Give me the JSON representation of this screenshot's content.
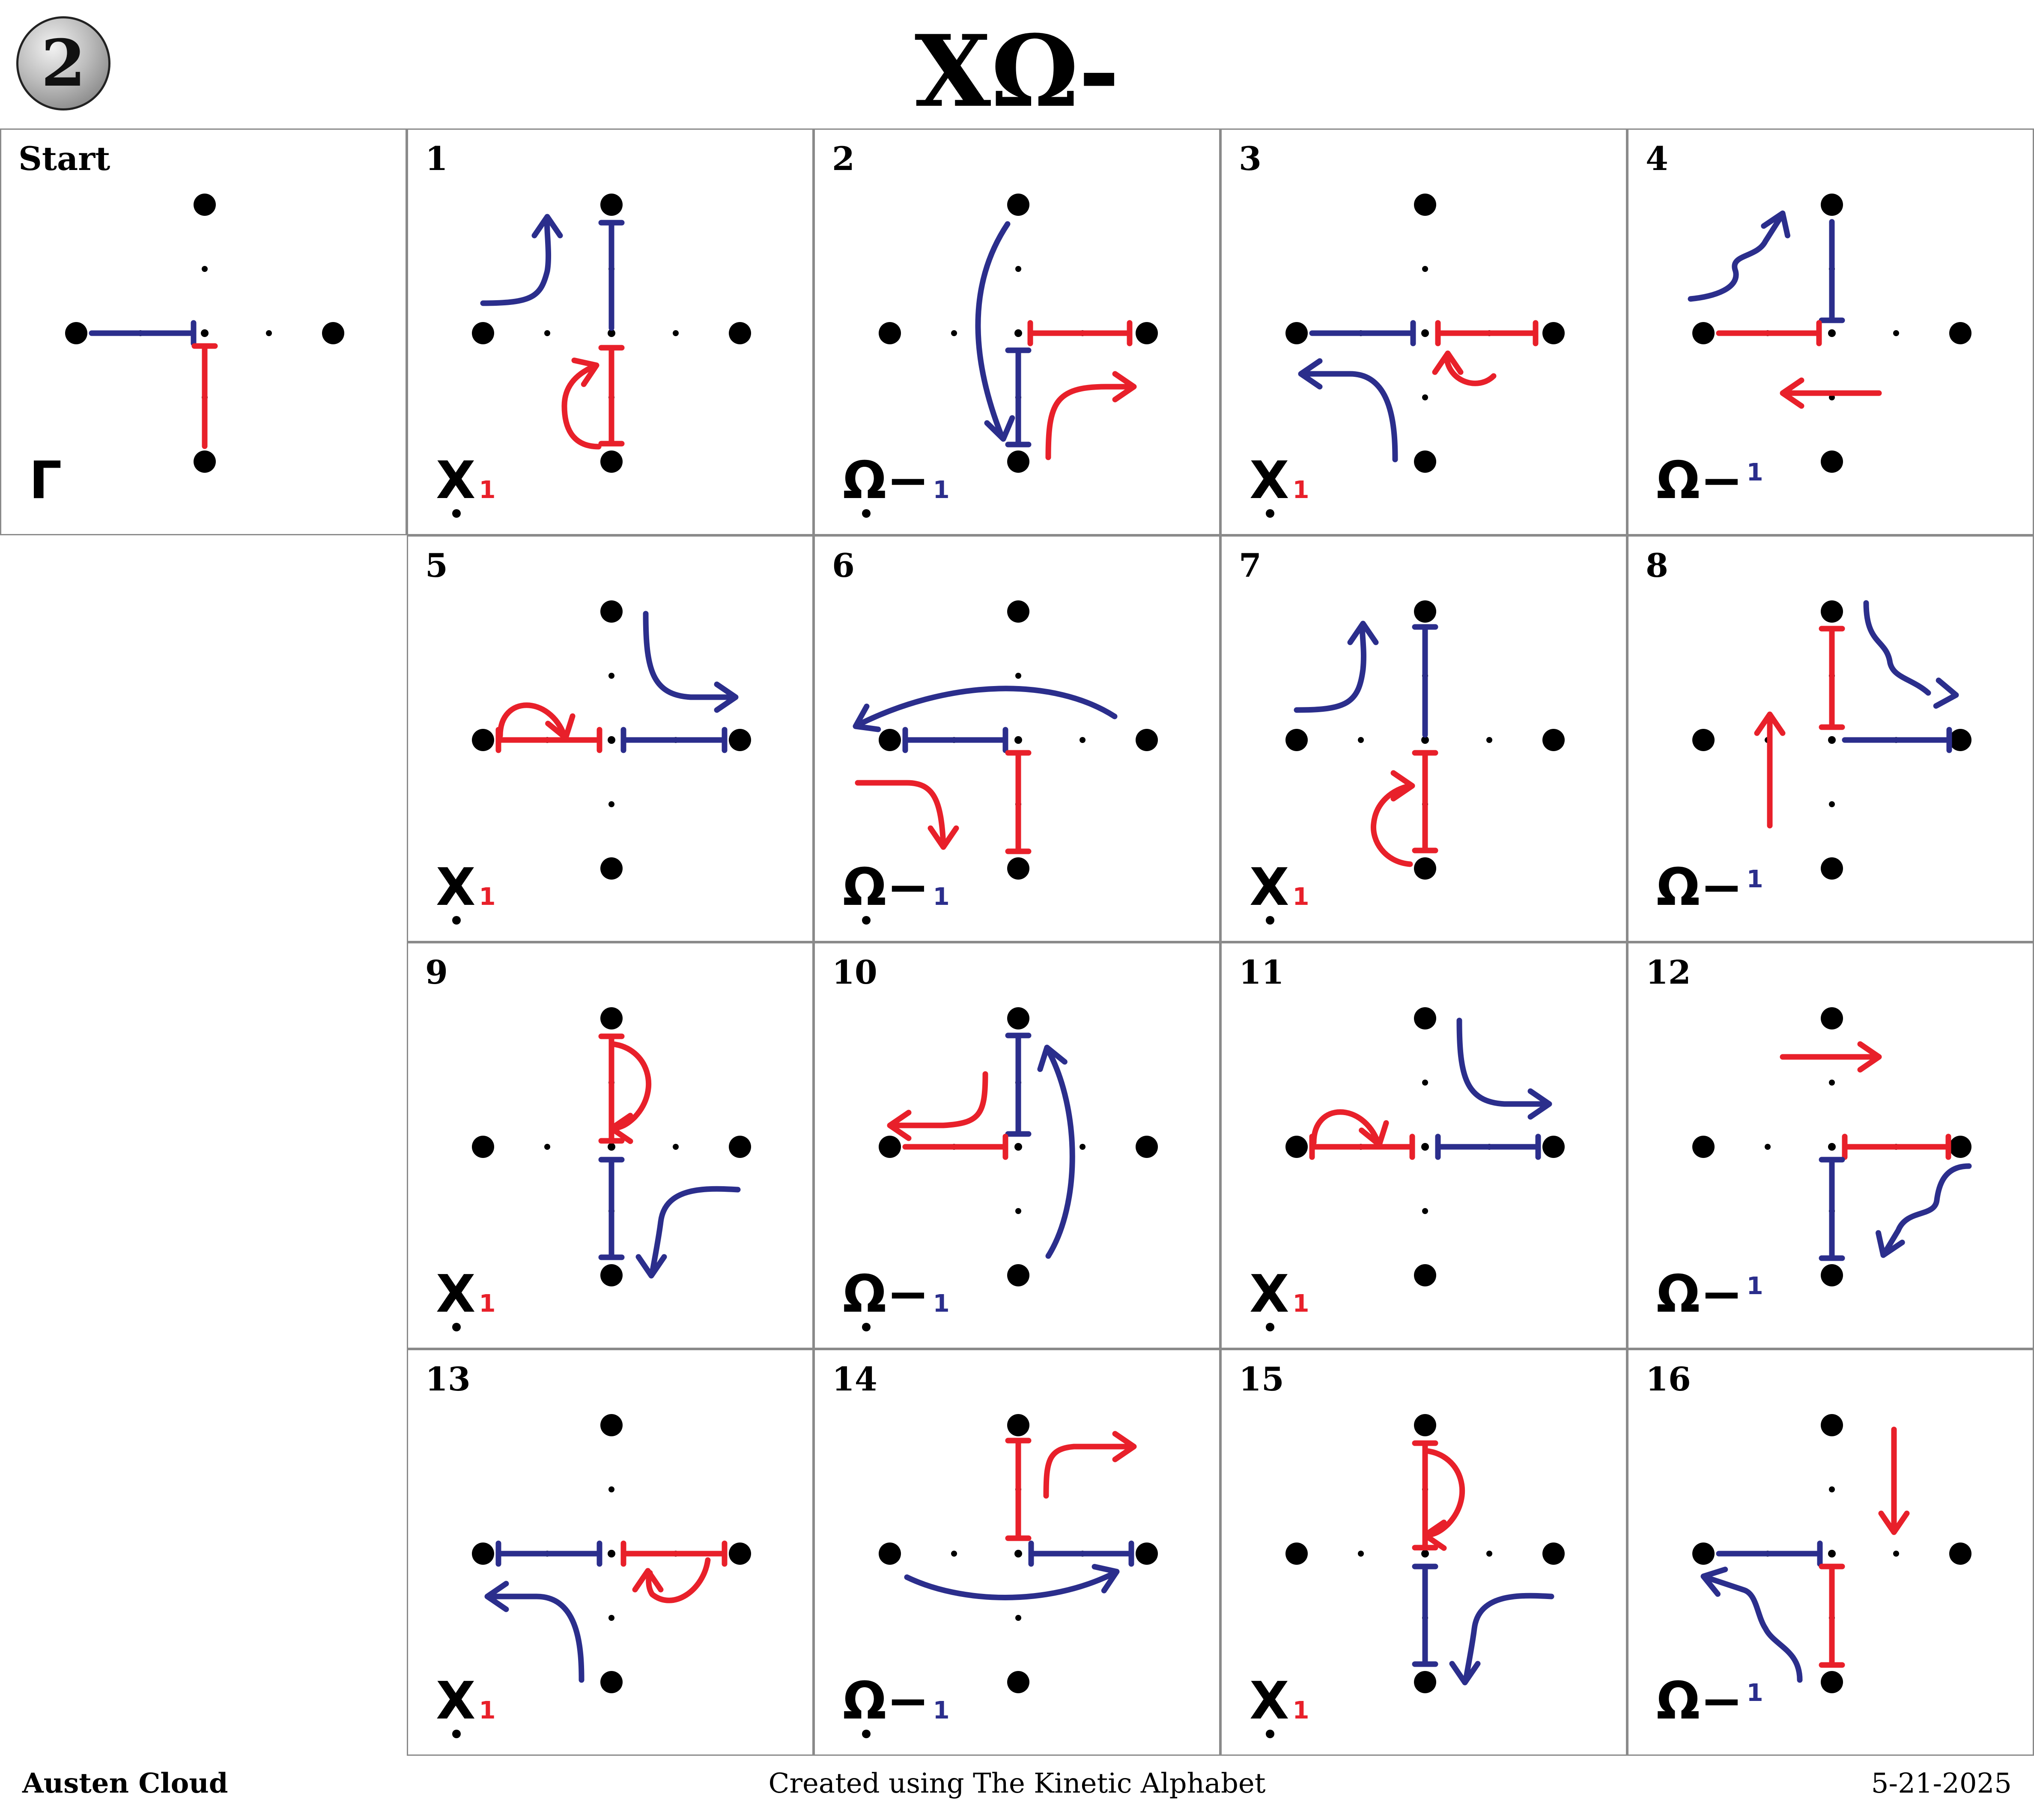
{
  "header": {
    "badge": "2",
    "title": "XΩ-"
  },
  "colors": {
    "red": "#e8202a",
    "blue": "#2b2e8c",
    "dot": "#000000",
    "border": "#8a8a8a"
  },
  "cells": [
    {
      "label": "Start",
      "glyph": "Γ",
      "glyph_sub": ""
    },
    {
      "label": "1",
      "glyph": "X",
      "glyph_sub": "1"
    },
    {
      "label": "2",
      "glyph": "Ω−",
      "glyph_sub": "1"
    },
    {
      "label": "3",
      "glyph": "X",
      "glyph_sub": "1"
    },
    {
      "label": "4",
      "glyph": "Ω−",
      "glyph_sub": "1"
    },
    {
      "label": "5",
      "glyph": "X",
      "glyph_sub": "1"
    },
    {
      "label": "6",
      "glyph": "Ω−",
      "glyph_sub": "1"
    },
    {
      "label": "7",
      "glyph": "X",
      "glyph_sub": "1"
    },
    {
      "label": "8",
      "glyph": "Ω−",
      "glyph_sub": "1"
    },
    {
      "label": "9",
      "glyph": "X",
      "glyph_sub": "1"
    },
    {
      "label": "10",
      "glyph": "Ω−",
      "glyph_sub": "1"
    },
    {
      "label": "11",
      "glyph": "X",
      "glyph_sub": "1"
    },
    {
      "label": "12",
      "glyph": "Ω−",
      "glyph_sub": "1"
    },
    {
      "label": "13",
      "glyph": "X",
      "glyph_sub": "1"
    },
    {
      "label": "14",
      "glyph": "Ω−",
      "glyph_sub": "1"
    },
    {
      "label": "15",
      "glyph": "X",
      "glyph_sub": "1"
    },
    {
      "label": "16",
      "glyph": "Ω−",
      "glyph_sub": "1"
    }
  ],
  "footer": {
    "author": "Austen Cloud",
    "credit": "Created using The Kinetic Alphabet",
    "date": "5-21-2025"
  }
}
